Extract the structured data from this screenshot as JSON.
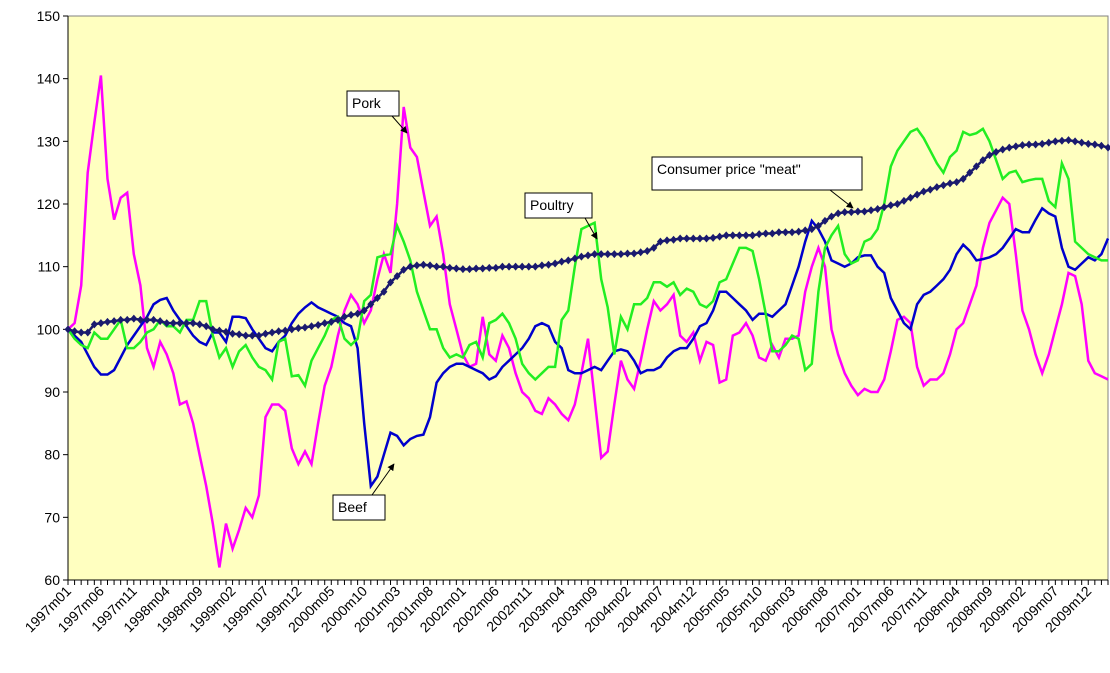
{
  "chart_data": {
    "type": "line",
    "categories": [
      "1997m01",
      null,
      null,
      null,
      null,
      "1997m06",
      null,
      null,
      null,
      null,
      "1997m11",
      null,
      null,
      null,
      null,
      "1998m04",
      null,
      null,
      null,
      null,
      "1998m09",
      null,
      null,
      null,
      null,
      "1999m02",
      null,
      null,
      null,
      null,
      "1999m07",
      null,
      null,
      null,
      null,
      "1999m12",
      null,
      null,
      null,
      null,
      "2000m05",
      null,
      null,
      null,
      null,
      "2000m10",
      null,
      null,
      null,
      null,
      "2001m03",
      null,
      null,
      null,
      null,
      "2001m08",
      null,
      null,
      null,
      null,
      "2002m01",
      null,
      null,
      null,
      null,
      "2002m06",
      null,
      null,
      null,
      null,
      "2002m11",
      null,
      null,
      null,
      null,
      "2003m04",
      null,
      null,
      null,
      null,
      "2003m09",
      null,
      null,
      null,
      null,
      "2004m02",
      null,
      null,
      null,
      null,
      "2004m07",
      null,
      null,
      null,
      null,
      "2004m12",
      null,
      null,
      null,
      null,
      "2005m05",
      null,
      null,
      null,
      null,
      "2005m10",
      null,
      null,
      null,
      null,
      "2006m03",
      null,
      null,
      null,
      null,
      "2006m08",
      null,
      null,
      null,
      null,
      "2007m01",
      null,
      null,
      null,
      null,
      "2007m06",
      null,
      null,
      null,
      null,
      "2007m11",
      null,
      null,
      null,
      null,
      "2008m04",
      null,
      null,
      null,
      null,
      "2008m09",
      null,
      null,
      null,
      null,
      "2009m02",
      null,
      null,
      null,
      null,
      "2009m07",
      null,
      null,
      null,
      null,
      "2009m12",
      null,
      null,
      null
    ],
    "series": [
      {
        "name": "Pork",
        "color": "#ff00ff",
        "values": [
          100,
          101,
          107,
          125,
          133,
          140.5,
          124,
          117.5,
          121,
          121.8,
          112,
          107,
          97,
          94,
          98,
          96,
          93,
          88,
          88.5,
          85,
          80,
          75,
          69,
          62,
          69,
          65,
          68,
          71.5,
          70,
          73.5,
          86,
          88,
          88,
          87,
          81,
          78.5,
          80.5,
          78.5,
          85,
          91,
          94,
          99,
          103,
          105.5,
          104,
          101,
          103,
          108,
          112,
          109,
          120,
          135.5,
          129,
          127.5,
          122,
          116.5,
          118,
          112,
          104,
          100,
          96,
          94,
          94.5,
          102,
          96,
          95,
          99,
          97,
          93,
          90,
          89,
          87,
          86.5,
          89,
          88,
          86.5,
          85.5,
          88,
          93,
          98.5,
          89,
          79.5,
          80.5,
          88,
          95,
          92,
          90.5,
          95,
          100,
          104.5,
          103,
          104,
          105.5,
          99,
          98,
          99.5,
          95,
          98,
          97.5,
          91.5,
          92,
          99,
          99.5,
          101,
          99,
          95.5,
          95,
          97.5,
          95.5,
          98.5,
          98.5,
          99,
          106,
          110,
          113,
          110,
          100,
          96,
          93,
          91,
          89.5,
          90.5,
          90,
          90,
          92,
          96.5,
          101.5,
          102,
          101,
          94,
          91,
          92,
          92,
          93,
          96,
          100,
          101,
          104,
          107,
          113,
          117,
          119,
          121,
          120,
          112,
          103,
          100,
          96,
          93,
          96,
          100,
          104,
          109,
          108.5,
          104,
          95,
          93,
          92.5,
          92
        ]
      },
      {
        "name": "Beef",
        "color": "#0000cc",
        "values": [
          100,
          99,
          98,
          96,
          94,
          92.8,
          92.8,
          93.5,
          95.5,
          97.5,
          99,
          100.5,
          102,
          104,
          104.7,
          105,
          103,
          101.5,
          100.5,
          99,
          98,
          97.5,
          99.5,
          99.5,
          98,
          102,
          102,
          101.8,
          100,
          98.5,
          97,
          96.5,
          98,
          99,
          101,
          102.5,
          103.5,
          104.3,
          103.5,
          103,
          102.5,
          102,
          101,
          100.5,
          97,
          85,
          75,
          76.5,
          80,
          83.5,
          83,
          81.5,
          82.5,
          83,
          83.2,
          86,
          91.5,
          93,
          94,
          94.5,
          94.5,
          94,
          93.5,
          93,
          92,
          92.5,
          94,
          95,
          96,
          97,
          98.5,
          100.5,
          101,
          100.5,
          98,
          97,
          93.5,
          93,
          93,
          93.5,
          94,
          93.5,
          95,
          96.5,
          96.8,
          96.5,
          95,
          93,
          93.5,
          93.5,
          94,
          95.5,
          96.5,
          97,
          97,
          98.5,
          100.5,
          101,
          103,
          106,
          106,
          105,
          104,
          103,
          101.5,
          102.5,
          102.5,
          102,
          103,
          104,
          107,
          110,
          114,
          117.3,
          116,
          114,
          111,
          110.5,
          110,
          110.5,
          111.5,
          111.8,
          111.8,
          110,
          109,
          105,
          103,
          101,
          100,
          104,
          105.5,
          106,
          107,
          108,
          109.5,
          112,
          113.5,
          112.5,
          111,
          111.2,
          111.5,
          112,
          113,
          114.5,
          116,
          115.5,
          115.5,
          117.5,
          119.3,
          118.5,
          118,
          113,
          110,
          109.5,
          110.5,
          111.5,
          111,
          112,
          114.5
        ]
      },
      {
        "name": "Poultry",
        "color": "#22ee22",
        "values": [
          100,
          98.5,
          97.5,
          97,
          99.5,
          98.5,
          98.5,
          100,
          101.5,
          97,
          97,
          98,
          99.5,
          100,
          101.5,
          100.5,
          100.5,
          99.5,
          101.5,
          101.5,
          104.5,
          104.5,
          99,
          95.5,
          97,
          94,
          96.5,
          97.5,
          95.5,
          94,
          93.5,
          92,
          98,
          98.5,
          92.5,
          92.7,
          91,
          95,
          97,
          99,
          101.5,
          102,
          98.5,
          97.5,
          98.5,
          104.5,
          105.5,
          111.5,
          111.8,
          112,
          116.5,
          114,
          111,
          106,
          103,
          100,
          100,
          97,
          95.5,
          96,
          95.5,
          97.5,
          98,
          95.5,
          101,
          101.5,
          102.5,
          101,
          98.5,
          94.5,
          93,
          92,
          93,
          94,
          94,
          101.5,
          103,
          110,
          116,
          116.5,
          117,
          108,
          103.5,
          96,
          102,
          100,
          104,
          104,
          105,
          107.5,
          107.5,
          106.8,
          107.5,
          105.5,
          106.5,
          106,
          104,
          103.5,
          104.5,
          107.5,
          108,
          110.5,
          113,
          113,
          112.5,
          108,
          102.5,
          96.5,
          96.5,
          97.5,
          99,
          98.5,
          93.5,
          94.5,
          106,
          113,
          115,
          116.5,
          112,
          110.5,
          111,
          114,
          114.5,
          116,
          120,
          126,
          128.5,
          130,
          131.5,
          132,
          130.5,
          128.5,
          126.5,
          125,
          127.5,
          128.5,
          131.5,
          131,
          131.3,
          132,
          130,
          127,
          124,
          125,
          125.3,
          123.5,
          123.8,
          124,
          124,
          120.5,
          119.5,
          126.5,
          124,
          114,
          113,
          112,
          111.5,
          111,
          111
        ]
      },
      {
        "name": "Consumer price \"meat\"",
        "color": "#1a1a6e",
        "marker": "diamond",
        "values": [
          100,
          99.7,
          99.5,
          99.5,
          100.8,
          101,
          101.2,
          101.3,
          101.5,
          101.5,
          101.7,
          101.5,
          101.5,
          101.5,
          101.3,
          101,
          101,
          101,
          101,
          101,
          100.8,
          100.5,
          100,
          99.8,
          99.6,
          99.3,
          99.2,
          99,
          99,
          99,
          99.3,
          99.5,
          99.7,
          99.8,
          100,
          100.2,
          100.3,
          100.5,
          100.7,
          101,
          101.2,
          101.5,
          102,
          102.3,
          102.5,
          103,
          104,
          105,
          106,
          107.5,
          108.5,
          109.5,
          110,
          110.2,
          110.3,
          110.2,
          110,
          110,
          109.8,
          109.7,
          109.6,
          109.6,
          109.7,
          109.7,
          109.8,
          109.8,
          110,
          110,
          110,
          110,
          110,
          110,
          110.2,
          110.3,
          110.5,
          110.8,
          111,
          111.3,
          111.6,
          111.8,
          112,
          112,
          112,
          112,
          112,
          112.1,
          112.1,
          112.3,
          112.5,
          113,
          114,
          114.2,
          114.3,
          114.5,
          114.5,
          114.5,
          114.5,
          114.5,
          114.6,
          114.8,
          115,
          115,
          115,
          115,
          115,
          115.2,
          115.3,
          115.3,
          115.5,
          115.5,
          115.5,
          115.6,
          115.8,
          116,
          116.5,
          117.3,
          118,
          118.5,
          118.7,
          118.7,
          118.8,
          118.8,
          119,
          119.2,
          119.5,
          119.8,
          120,
          120.5,
          121,
          121.5,
          122,
          122.3,
          122.7,
          123,
          123.3,
          123.5,
          124,
          125,
          126,
          127,
          127.8,
          128.3,
          128.7,
          129,
          129.2,
          129.4,
          129.5,
          129.5,
          129.6,
          129.8,
          130,
          130.1,
          130.2,
          130,
          129.8,
          129.6,
          129.5,
          129.3,
          129
        ]
      }
    ],
    "annotations": [
      "Pork",
      "Beef",
      "Poultry",
      "Consumer price \"meat\""
    ],
    "ylim": [
      60,
      150
    ],
    "yticks": [
      60,
      70,
      80,
      90,
      100,
      110,
      120,
      130,
      140,
      150
    ],
    "grid": false,
    "background": "#ffffc0"
  }
}
